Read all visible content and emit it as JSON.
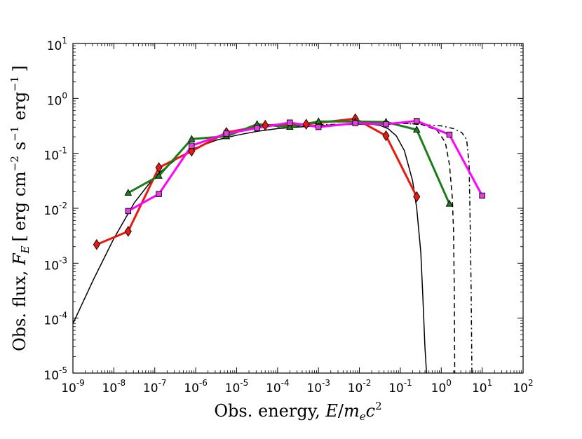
{
  "chart_data": {
    "type": "line",
    "title": "",
    "xlabel": {
      "prefix": "Obs. energy, ",
      "parts": [
        "E",
        "/",
        "m",
        "e",
        "c",
        "2"
      ],
      "text": "Obs. energy, E/m_e c^2"
    },
    "ylabel": {
      "prefix": "Obs. flux, ",
      "var": "F",
      "var_sub": "E",
      "bracket_open": "[",
      "unit1": "erg cm",
      "unit1_exp": "−2",
      "unit2": "s",
      "unit2_exp": "−1",
      "unit3": "erg",
      "unit3_exp": "−1",
      "bracket_close": "]",
      "text": "Obs. flux, F_E [ erg cm^-2 s^-1 erg^-1 ]"
    },
    "xscale": "log",
    "yscale": "log",
    "xlim_exp": [
      -9,
      2
    ],
    "ylim_exp": [
      -5,
      1
    ],
    "x_ticks": [
      {
        "base": "10",
        "exp": "-9"
      },
      {
        "base": "10",
        "exp": "-8"
      },
      {
        "base": "10",
        "exp": "-7"
      },
      {
        "base": "10",
        "exp": "-6"
      },
      {
        "base": "10",
        "exp": "-5"
      },
      {
        "base": "10",
        "exp": "-4"
      },
      {
        "base": "10",
        "exp": "-3"
      },
      {
        "base": "10",
        "exp": "-2"
      },
      {
        "base": "10",
        "exp": "-1"
      },
      {
        "base": "10",
        "exp": "0"
      },
      {
        "base": "10",
        "exp": "1"
      },
      {
        "base": "10",
        "exp": "2"
      }
    ],
    "y_ticks": [
      {
        "base": "10",
        "exp": "-5"
      },
      {
        "base": "10",
        "exp": "-4"
      },
      {
        "base": "10",
        "exp": "-3"
      },
      {
        "base": "10",
        "exp": "-2"
      },
      {
        "base": "10",
        "exp": "-1"
      },
      {
        "base": "10",
        "exp": "0"
      },
      {
        "base": "10",
        "exp": "1"
      }
    ],
    "grid": false,
    "legend": null,
    "series": [
      {
        "name": "model-solid",
        "kind": "model",
        "color": "#000000",
        "dash": "none",
        "marker": null,
        "log_points": [
          [
            -9,
            -4.1
          ],
          [
            -8.5,
            -3.3
          ],
          [
            -8,
            -2.55
          ],
          [
            -7.5,
            -1.9
          ],
          [
            -7,
            -1.42
          ],
          [
            -6.5,
            -1.12
          ],
          [
            -6,
            -0.9
          ],
          [
            -5.5,
            -0.76
          ],
          [
            -5,
            -0.67
          ],
          [
            -4.5,
            -0.6
          ],
          [
            -4,
            -0.55
          ],
          [
            -3.5,
            -0.52
          ],
          [
            -3,
            -0.5
          ],
          [
            -2.5,
            -0.48
          ],
          [
            -2,
            -0.47
          ],
          [
            -1.7,
            -0.47
          ],
          [
            -1.5,
            -0.49
          ],
          [
            -1.3,
            -0.55
          ],
          [
            -1.1,
            -0.68
          ],
          [
            -0.9,
            -0.95
          ],
          [
            -0.7,
            -1.5
          ],
          [
            -0.6,
            -2.0
          ],
          [
            -0.5,
            -2.8
          ],
          [
            -0.45,
            -3.6
          ],
          [
            -0.4,
            -4.5
          ],
          [
            -0.36,
            -5.0
          ]
        ]
      },
      {
        "name": "model-dashed",
        "kind": "model",
        "color": "#000000",
        "dash": "7,5",
        "marker": null,
        "log_points": [
          [
            -4,
            -0.52
          ],
          [
            -3,
            -0.49
          ],
          [
            -2,
            -0.47
          ],
          [
            -1,
            -0.45
          ],
          [
            -0.5,
            -0.47
          ],
          [
            -0.1,
            -0.58
          ],
          [
            0.1,
            -0.8
          ],
          [
            0.2,
            -1.2
          ],
          [
            0.27,
            -1.8
          ],
          [
            0.3,
            -2.4
          ],
          [
            0.32,
            -3.5
          ],
          [
            0.33,
            -5.0
          ]
        ]
      },
      {
        "name": "model-dashdot",
        "kind": "model",
        "color": "#000000",
        "dash": "7,4,2,4",
        "marker": null,
        "log_points": [
          [
            -3,
            -0.48
          ],
          [
            -2,
            -0.46
          ],
          [
            -1,
            -0.45
          ],
          [
            0,
            -0.5
          ],
          [
            0.3,
            -0.55
          ],
          [
            0.5,
            -0.62
          ],
          [
            0.62,
            -0.75
          ],
          [
            0.68,
            -1.2
          ],
          [
            0.71,
            -2.4
          ],
          [
            0.73,
            -3.5
          ],
          [
            0.75,
            -5.0
          ]
        ]
      },
      {
        "name": "red-diamonds",
        "kind": "data",
        "color": "#e8190f",
        "marker_fill": "#e8190f",
        "marker": "diamond",
        "log_points": [
          [
            -8.42,
            -2.66
          ],
          [
            -7.65,
            -2.42
          ],
          [
            -6.9,
            -1.26
          ],
          [
            -6.1,
            -0.96
          ],
          [
            -5.25,
            -0.62
          ],
          [
            -4.3,
            -0.49
          ],
          [
            -3.3,
            -0.47
          ],
          [
            -2.1,
            -0.37
          ],
          [
            -1.35,
            -0.68
          ],
          [
            -0.6,
            -1.79
          ]
        ]
      },
      {
        "name": "green-triangles",
        "kind": "data",
        "color": "#1a7d1a",
        "marker_fill": "#1a7d1a",
        "marker": "triangle",
        "log_points": [
          [
            -7.65,
            -1.72
          ],
          [
            -6.9,
            -1.41
          ],
          [
            -6.1,
            -0.74
          ],
          [
            -5.25,
            -0.69
          ],
          [
            -4.5,
            -0.47
          ],
          [
            -3.7,
            -0.52
          ],
          [
            -3.0,
            -0.42
          ],
          [
            -2.1,
            -0.42
          ],
          [
            -1.35,
            -0.43
          ],
          [
            -0.6,
            -0.57
          ],
          [
            0.2,
            -1.92
          ]
        ]
      },
      {
        "name": "magenta-squares",
        "kind": "data",
        "color": "#ff00ff",
        "marker_fill": "#e040e0",
        "marker": "square",
        "log_points": [
          [
            -7.65,
            -2.05
          ],
          [
            -6.9,
            -1.74
          ],
          [
            -6.1,
            -0.86
          ],
          [
            -5.25,
            -0.64
          ],
          [
            -4.5,
            -0.54
          ],
          [
            -3.7,
            -0.44
          ],
          [
            -3.0,
            -0.52
          ],
          [
            -2.1,
            -0.45
          ],
          [
            -1.35,
            -0.47
          ],
          [
            -0.6,
            -0.41
          ],
          [
            0.2,
            -0.66
          ],
          [
            1.0,
            -1.77
          ]
        ]
      }
    ]
  }
}
